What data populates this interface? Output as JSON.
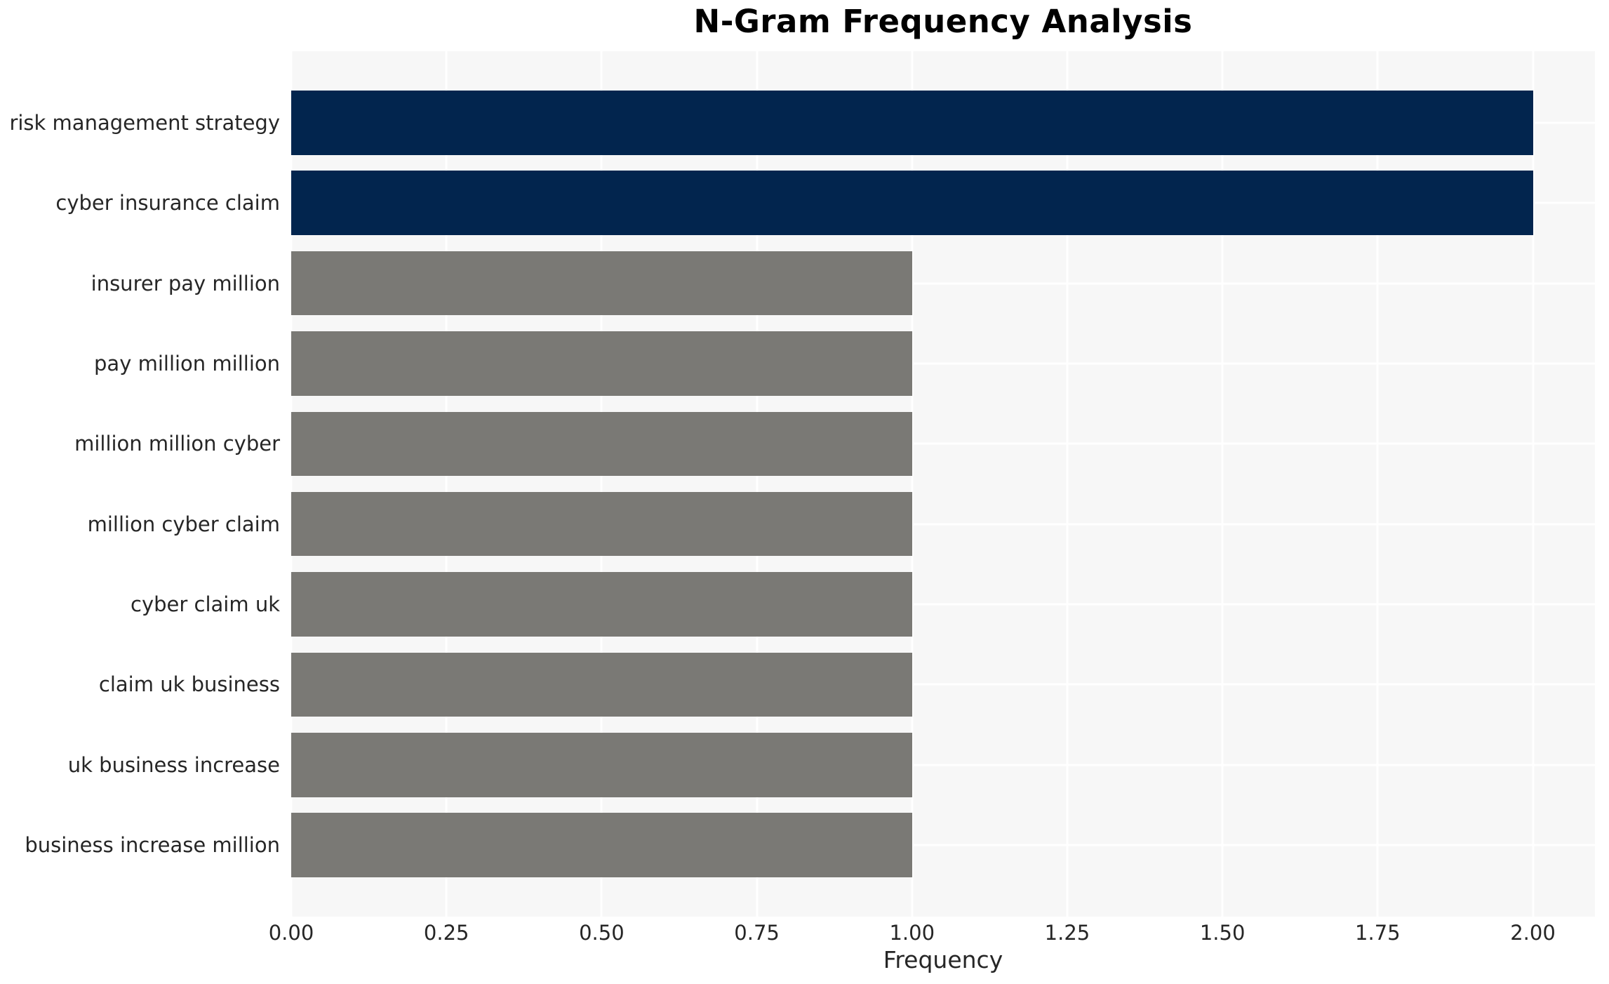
{
  "chart_data": {
    "type": "bar",
    "orientation": "horizontal",
    "title": "N-Gram Frequency Analysis",
    "xlabel": "Frequency",
    "ylabel": "",
    "categories": [
      "risk management strategy",
      "cyber insurance claim",
      "insurer pay million",
      "pay million million",
      "million million cyber",
      "million cyber claim",
      "cyber claim uk",
      "claim uk business",
      "uk business increase",
      "business increase million"
    ],
    "values": [
      2,
      2,
      1,
      1,
      1,
      1,
      1,
      1,
      1,
      1
    ],
    "bar_colors": [
      "#02254e",
      "#02254e",
      "#7a7975",
      "#7a7975",
      "#7a7975",
      "#7a7975",
      "#7a7975",
      "#7a7975",
      "#7a7975",
      "#7a7975"
    ],
    "xlim": [
      0,
      2.1
    ],
    "xticks": [
      0,
      0.25,
      0.5,
      0.75,
      1.0,
      1.25,
      1.5,
      1.75,
      2.0
    ],
    "xtick_labels": [
      "0.00",
      "0.25",
      "0.50",
      "0.75",
      "1.00",
      "1.25",
      "1.50",
      "1.75",
      "2.00"
    ],
    "grid": true,
    "legend": false,
    "colors": {
      "highlight": "#02254e",
      "default": "#7a7975",
      "plot_background": "#f7f7f7",
      "gridline": "#ffffff",
      "tick_text": "#262626",
      "title_text": "#000000"
    }
  }
}
